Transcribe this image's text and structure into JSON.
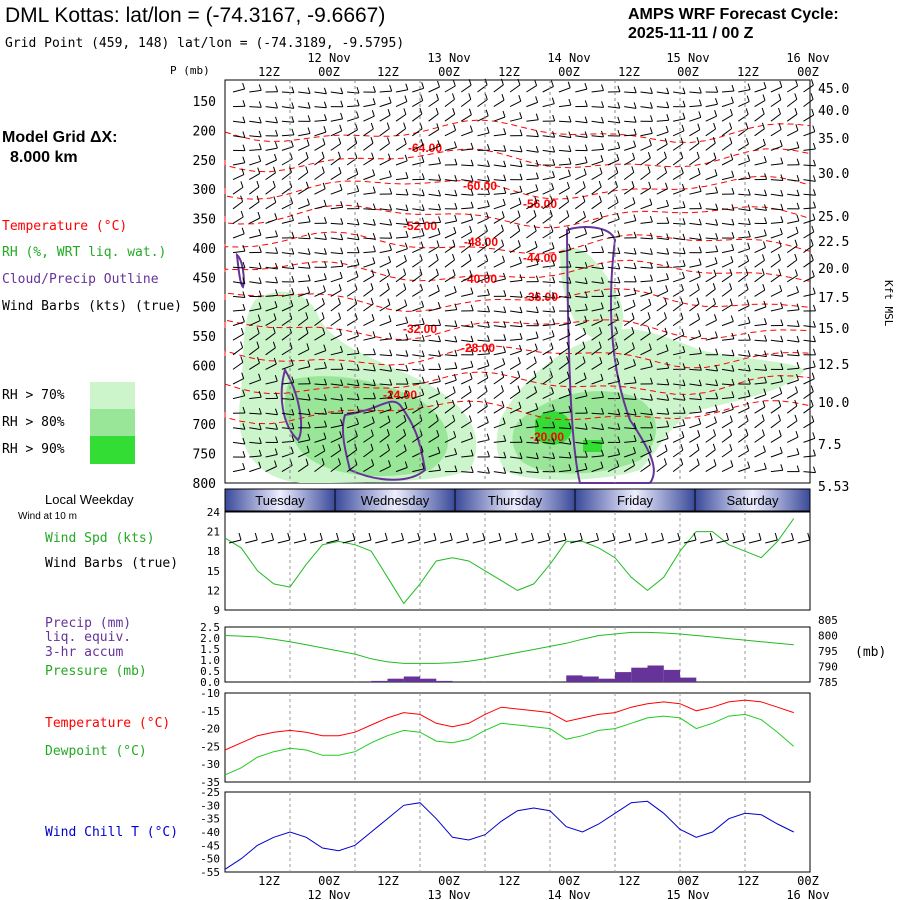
{
  "header": {
    "title": "DML Kottas:  lat/lon = (-74.3167, -9.6667)",
    "subtitle": "Grid Point (459, 148) lat/lon = (-74.3189, -9.5795)",
    "cycle_line1": "AMPS WRF Forecast Cycle:",
    "cycle_line2": "2025-11-11 / 00  Z"
  },
  "left_labels": {
    "grid_label": "Model Grid ΔX:",
    "grid_value": "8.000 km",
    "temperature": "Temperature (°C)",
    "rh": "RH (%, WRT liq. wat.)",
    "cloud": "Cloud/Precip Outline",
    "wind": "Wind Barbs (kts) (true)",
    "rh70": "RH > 70%",
    "rh80": "RH > 80%",
    "rh90": "RH > 90%",
    "local_weekday": "Local Weekday",
    "wind_at_10m": "Wind at 10 m",
    "wind_spd": "Wind Spd (kts)",
    "wind_barbs": "Wind Barbs (true)",
    "precip": "Precip (mm)",
    "liq_equiv": "liq. equiv.",
    "accum": "3-hr accum",
    "pressure": "Pressure (mb)",
    "pressure_unit": "(mb)",
    "temp2": "Temperature (°C)",
    "dewpoint": "Dewpoint (°C)",
    "windchill": "Wind Chill T (°C)",
    "p_axis": "P (mb)",
    "kft": "Kft MSL"
  },
  "colors": {
    "temperature": "#ff0000",
    "rh70": "#ccf5cc",
    "rh80": "#99e699",
    "rh90": "#33dd33",
    "cloud": "#663399",
    "wind_spd": "#22bb22",
    "pressure": "#22bb22",
    "precip": "#663399",
    "dewpoint": "#22cc22",
    "windchill": "#0000cc",
    "weekday_band": "#5566aa"
  },
  "time_axis": {
    "hour_labels": [
      "12Z",
      "00Z",
      "12Z",
      "00Z",
      "12Z",
      "00Z",
      "12Z",
      "00Z",
      "12Z",
      "00Z"
    ],
    "date_labels": [
      "12 Nov",
      "13 Nov",
      "14 Nov",
      "15 Nov",
      "16 Nov"
    ],
    "weekdays": [
      "Tuesday",
      "Wednesday",
      "Thursday",
      "Friday",
      "Saturday"
    ]
  },
  "chart_data": [
    {
      "type": "heatmap",
      "name": "cross-section",
      "pressure_ticks": [
        150,
        200,
        250,
        300,
        350,
        400,
        450,
        500,
        550,
        600,
        650,
        700,
        750,
        800
      ],
      "height_ticks_kft": [
        "45.0",
        "40.0",
        "35.0",
        "30.0",
        "25.0",
        "22.5",
        "20.0",
        "17.5",
        "15.0",
        "12.5",
        "10.0",
        "7.5",
        "5.53"
      ],
      "temperature_labels": [
        "-64.00",
        "-60.00",
        "-56.00",
        "-52.00",
        "-48.00",
        "-44.00",
        "-40.00",
        "-36.00",
        "-32.00",
        "-28.00",
        "-24.00",
        "-20.00"
      ]
    },
    {
      "type": "line",
      "name": "wind speed",
      "ylim": [
        9,
        24
      ],
      "yticks": [
        "24",
        "21",
        "18",
        "15",
        "12",
        "9"
      ],
      "values": [
        20,
        18.5,
        15,
        13,
        12.5,
        16,
        19,
        19.5,
        19,
        18,
        14,
        10,
        13,
        16.5,
        17,
        16.5,
        15,
        13.5,
        12,
        13,
        16,
        19.5,
        19.5,
        18.5,
        17,
        14,
        12,
        14,
        18,
        21,
        21,
        19,
        18,
        17,
        19.5,
        23
      ]
    },
    {
      "type": "bar",
      "name": "precip and pressure",
      "precip_ylim": [
        0,
        2.5
      ],
      "precip_ticks": [
        "2.5",
        "2.0",
        "1.5",
        "1.0",
        "0.5",
        "0.0"
      ],
      "pressure_ticks": [
        "805",
        "800",
        "795",
        "790",
        "785"
      ],
      "precip": [
        0,
        0,
        0,
        0,
        0,
        0,
        0,
        0,
        0,
        0.05,
        0.15,
        0.25,
        0.15,
        0.05,
        0,
        0,
        0,
        0,
        0,
        0,
        0,
        0.3,
        0.25,
        0.15,
        0.45,
        0.65,
        0.75,
        0.55,
        0.2,
        0,
        0,
        0,
        0,
        0,
        0,
        0
      ],
      "pressure": [
        800,
        799.8,
        799.5,
        798.8,
        798,
        797,
        796,
        795,
        794,
        792.5,
        791.5,
        791,
        791,
        791,
        791.2,
        791.7,
        792.5,
        793.5,
        794.5,
        795.5,
        796.5,
        797.5,
        798.8,
        800,
        800.5,
        801,
        801,
        800.8,
        800.5,
        800,
        799.5,
        799,
        798.5,
        798,
        797.5,
        797
      ]
    },
    {
      "type": "line",
      "name": "temperature and dewpoint",
      "ylim": [
        -35,
        -10
      ],
      "yticks": [
        "-10",
        "-15",
        "-20",
        "-25",
        "-30",
        "-35"
      ],
      "series": [
        {
          "name": "Temperature",
          "values": [
            -26,
            -24,
            -22,
            -21,
            -20.5,
            -21,
            -22,
            -22,
            -21,
            -19,
            -17,
            -15.5,
            -16,
            -18.5,
            -19.5,
            -18.5,
            -16,
            -14,
            -14.5,
            -15,
            -15.5,
            -18,
            -17,
            -16,
            -15.5,
            -14,
            -13,
            -12.5,
            -13,
            -15,
            -14,
            -12.5,
            -12,
            -12.5,
            -14,
            -15.5
          ]
        },
        {
          "name": "Dewpoint",
          "values": [
            -33,
            -31,
            -28,
            -26.5,
            -25.5,
            -26,
            -27.5,
            -27.5,
            -26.5,
            -24,
            -22,
            -20.5,
            -21,
            -23.5,
            -24,
            -23,
            -20.5,
            -18.5,
            -19,
            -19.5,
            -20,
            -23,
            -22,
            -20.5,
            -20,
            -18.5,
            -17,
            -16.5,
            -17,
            -20,
            -18.5,
            -16.5,
            -16,
            -17.5,
            -21,
            -25
          ]
        }
      ]
    },
    {
      "type": "line",
      "name": "wind chill",
      "ylim": [
        -55,
        -25
      ],
      "yticks": [
        "-25",
        "-30",
        "-35",
        "-40",
        "-45",
        "-50",
        "-55"
      ],
      "values": [
        -54,
        -50,
        -45,
        -42,
        -40,
        -42,
        -46,
        -47,
        -45,
        -40,
        -35,
        -30,
        -29,
        -35,
        -42,
        -43,
        -41,
        -36,
        -32,
        -31,
        -32,
        -38,
        -40,
        -37,
        -33,
        -29,
        -28.5,
        -33,
        -39,
        -42,
        -40,
        -35,
        -33,
        -33.5,
        -37,
        -40
      ]
    }
  ]
}
